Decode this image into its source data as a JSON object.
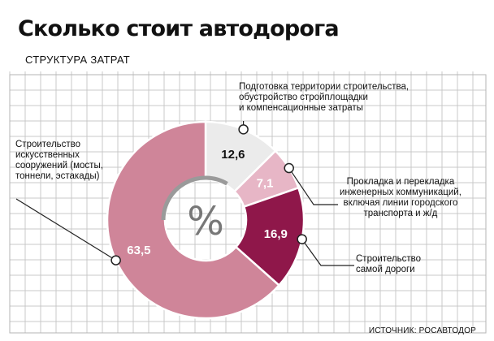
{
  "title": "Сколько стоит автодорога",
  "subtitle": "СТРУКТУРА ЗАТРАТ",
  "source": "ИСТОЧНИК: РОСАВТОДОР",
  "center_label": "%",
  "colors": {
    "grid": "#c8c8c8",
    "slice_territory": "#ebebeb",
    "slice_communications": "#e7b6c6",
    "slice_road": "#8f174a",
    "slice_structures": "#cf8599",
    "marker": "#ffffff"
  },
  "chart_data": {
    "type": "pie",
    "variant": "donut",
    "title": "Сколько стоит автодорога",
    "subtitle": "СТРУКТУРА ЗАТРАТ",
    "unit": "%",
    "slices": [
      {
        "key": "territory",
        "label": "Подготовка территории строительства,\nобустройство стройплощадки\nи компенсационные затраты",
        "value": 12.6,
        "value_label": "12,6"
      },
      {
        "key": "communications",
        "label": "Прокладка и перекладка\nинженерных коммуникаций,\nвключая линии городского\nтранспорта и ж/д",
        "value": 7.1,
        "value_label": "7,1"
      },
      {
        "key": "road",
        "label": "Строительство\nсамой дороги",
        "value": 16.9,
        "value_label": "16,9"
      },
      {
        "key": "structures",
        "label": "Строительство\nискусственных\nсооружений (мосты,\nтоннели, эстакады)",
        "value": 63.5,
        "value_label": "63,5"
      }
    ]
  }
}
